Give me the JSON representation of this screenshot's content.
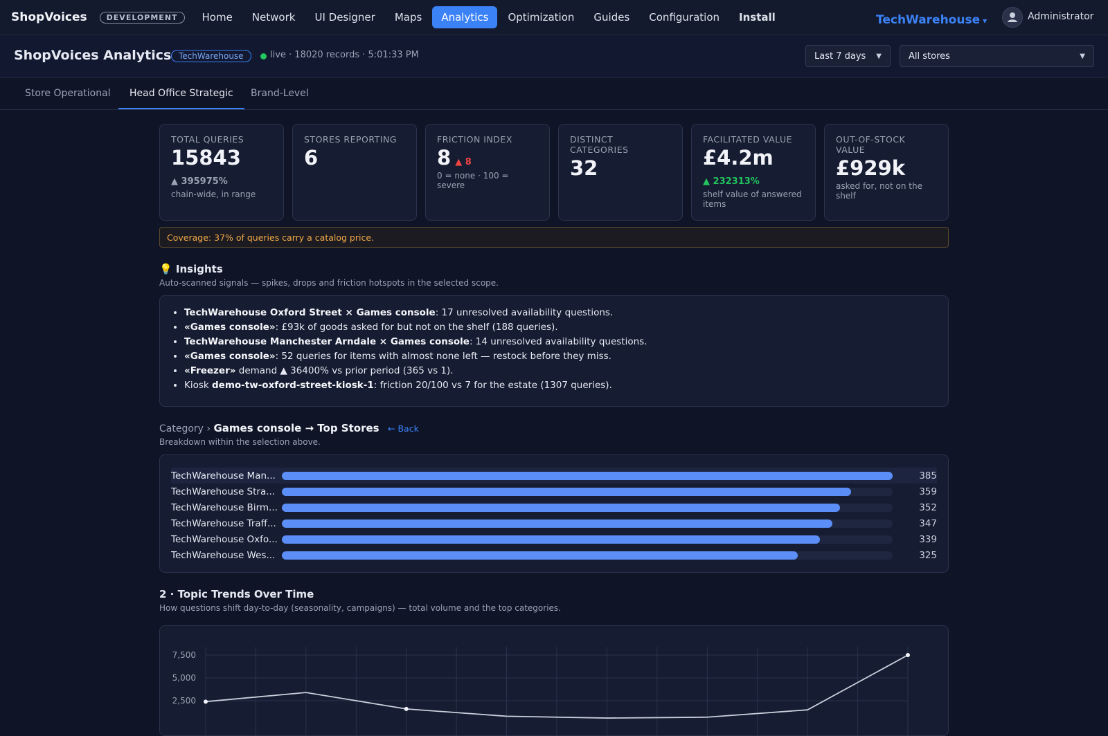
{
  "topnav": {
    "brand": "ShopVoices",
    "env_badge": "DEVELOPMENT",
    "items": [
      {
        "label": "Home"
      },
      {
        "label": "Network"
      },
      {
        "label": "UI Designer"
      },
      {
        "label": "Maps"
      },
      {
        "label": "Analytics",
        "active": true
      },
      {
        "label": "Optimization"
      },
      {
        "label": "Guides"
      },
      {
        "label": "Configuration"
      },
      {
        "label": "Install",
        "bold": true
      }
    ],
    "tenant": "TechWarehouse",
    "user": "Administrator"
  },
  "header": {
    "title": "ShopVoices Analytics",
    "store_chip": "TechWarehouse",
    "status": "live · 18020 records · 5:01:33 PM",
    "range_select": "Last 7 days",
    "store_select": "All stores"
  },
  "tabs": [
    {
      "label": "Store Operational"
    },
    {
      "label": "Head Office Strategic",
      "active": true
    },
    {
      "label": "Brand-Level"
    }
  ],
  "kpis": [
    {
      "label": "TOTAL QUERIES",
      "value": "15843",
      "delta": "▲ 395975%",
      "delta_color": "grey",
      "note": "chain-wide, in range"
    },
    {
      "label": "STORES REPORTING",
      "value": "6"
    },
    {
      "label": "FRICTION INDEX",
      "value": "8",
      "inline_delta": "▲ 8",
      "note": "0 = none · 100 = severe"
    },
    {
      "label": "DISTINCT CATEGORIES",
      "value": "32"
    },
    {
      "label": "FACILITATED VALUE",
      "value": "£4.2m",
      "delta": "▲ 232313%",
      "delta_color": "green",
      "note": "shelf value of answered items"
    },
    {
      "label": "OUT-OF-STOCK VALUE",
      "value": "£929k",
      "note": "asked for, not on the shelf"
    }
  ],
  "coverage": "Coverage: 37% of queries carry a catalog price.",
  "insights": {
    "title": "💡 Insights",
    "subtitle": "Auto-scanned signals — spikes, drops and friction hotspots in the selected scope.",
    "items": [
      {
        "bold": "TechWarehouse Oxford Street × Games console",
        "text": ": 17 unresolved availability questions."
      },
      {
        "bold": "«Games console»",
        "text": ": £93k of goods asked for but not on the shelf (188 queries)."
      },
      {
        "bold": "TechWarehouse Manchester Arndale × Games console",
        "text": ": 14 unresolved availability questions."
      },
      {
        "bold": "«Games console»",
        "text": ": 52 queries for items with almost none left — restock before they miss."
      },
      {
        "bold": "«Freezer»",
        "text": " demand ▲ 36400% vs prior period (365 vs 1).",
        "pre": ""
      },
      {
        "pre": "Kiosk ",
        "bold": "demo-tw-oxford-street-kiosk-1",
        "text": ": friction 20/100 vs 7 for the estate (1307 queries)."
      }
    ]
  },
  "drilldown": {
    "crumb": "Category",
    "sep": "›",
    "current": "Games console → Top Stores",
    "back": "← Back",
    "subtitle": "Breakdown within the selection above."
  },
  "chart_data": [
    {
      "type": "bar",
      "orientation": "horizontal",
      "categories": [
        "TechWarehouse Man...",
        "TechWarehouse Stra...",
        "TechWarehouse Birm...",
        "TechWarehouse Traff...",
        "TechWarehouse Oxfo...",
        "TechWarehouse Wes..."
      ],
      "values": [
        385,
        359,
        352,
        347,
        339,
        325
      ],
      "xlim": [
        0,
        385
      ]
    },
    {
      "type": "line",
      "title": "2 · Topic Trends Over Time",
      "subtitle": "How questions shift day-to-day (seasonality, campaigns) — total volume and the top categories.",
      "yticks": [
        "7,500",
        "5,000",
        "2,500"
      ],
      "ylim": [
        0,
        8000
      ],
      "x": [
        0,
        1,
        2,
        3,
        4,
        5,
        6,
        7
      ],
      "series": [
        {
          "values": [
            2400,
            3400,
            1600,
            800,
            600,
            700,
            1500,
            7500
          ]
        }
      ]
    }
  ],
  "colors": {
    "accent": "#3b82f6",
    "bar": "#5b8ef6",
    "positive": "#22c55e",
    "negative": "#ef4444",
    "warning": "#f0a947"
  }
}
